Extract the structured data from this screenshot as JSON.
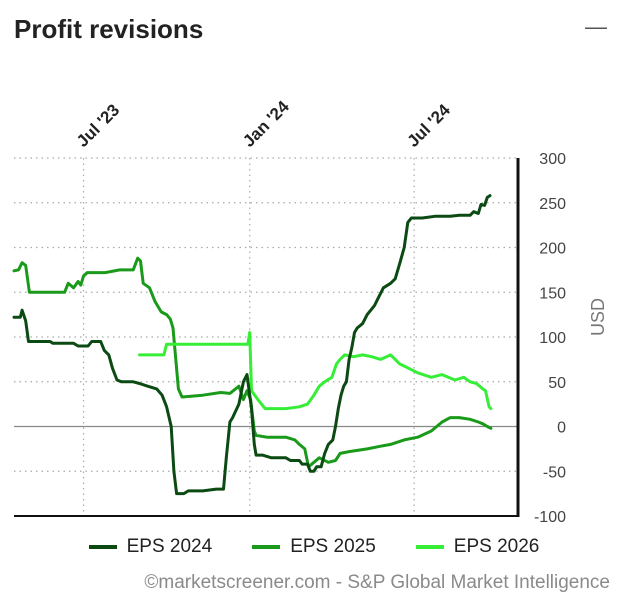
{
  "header": {
    "title": "Profit revisions",
    "collapse_glyph": "—"
  },
  "credit": "©marketscreener.com - S&P Global Market Intelligence",
  "colors": {
    "eps2024": "#0b4a12",
    "eps2025": "#1a9a1a",
    "eps2026": "#37ee37",
    "axis": "#111111",
    "grid": "#aaaaaa",
    "zero": "#888888"
  },
  "chart_data": {
    "type": "line",
    "title": "",
    "xlabel": "",
    "ylabel": "USD",
    "ylim": [
      -100,
      300
    ],
    "y_ticks": [
      300,
      250,
      200,
      150,
      100,
      50,
      0,
      -50,
      -100
    ],
    "xlim": [
      "2023-04-15",
      "2024-10-24"
    ],
    "x_ticks": [
      {
        "date": "2023-07-01",
        "label": "Jul '23"
      },
      {
        "date": "2024-01-01",
        "label": "Jan '24"
      },
      {
        "date": "2024-07-01",
        "label": "Jul '24"
      }
    ],
    "grid": true,
    "legend": "bottom",
    "series": [
      {
        "name": "EPS 2024",
        "color_key": "eps2024",
        "points": [
          [
            "2023-04-15",
            122
          ],
          [
            "2023-04-22",
            122
          ],
          [
            "2023-04-24",
            130
          ],
          [
            "2023-04-28",
            118
          ],
          [
            "2023-05-01",
            95
          ],
          [
            "2023-05-25",
            95
          ],
          [
            "2023-05-28",
            93
          ],
          [
            "2023-06-20",
            93
          ],
          [
            "2023-06-25",
            90
          ],
          [
            "2023-07-06",
            90
          ],
          [
            "2023-07-10",
            95
          ],
          [
            "2023-07-20",
            95
          ],
          [
            "2023-07-24",
            85
          ],
          [
            "2023-07-29",
            80
          ],
          [
            "2023-08-02",
            65
          ],
          [
            "2023-08-07",
            52
          ],
          [
            "2023-08-12",
            50
          ],
          [
            "2023-08-25",
            50
          ],
          [
            "2023-09-01",
            48
          ],
          [
            "2023-09-10",
            45
          ],
          [
            "2023-09-20",
            42
          ],
          [
            "2023-09-26",
            35
          ],
          [
            "2023-10-01",
            22
          ],
          [
            "2023-10-06",
            0
          ],
          [
            "2023-10-09",
            -50
          ],
          [
            "2023-10-12",
            -75
          ],
          [
            "2023-10-20",
            -75
          ],
          [
            "2023-10-25",
            -72
          ],
          [
            "2023-11-10",
            -72
          ],
          [
            "2023-11-25",
            -70
          ],
          [
            "2023-12-03",
            -70
          ],
          [
            "2023-12-06",
            -35
          ],
          [
            "2023-12-10",
            5
          ],
          [
            "2023-12-13",
            10
          ],
          [
            "2023-12-20",
            25
          ],
          [
            "2023-12-25",
            50
          ],
          [
            "2023-12-29",
            58
          ],
          [
            "2024-01-03",
            20
          ],
          [
            "2024-01-06",
            -20
          ],
          [
            "2024-01-08",
            -32
          ],
          [
            "2024-01-15",
            -32
          ],
          [
            "2024-01-25",
            -35
          ],
          [
            "2024-02-10",
            -35
          ],
          [
            "2024-02-15",
            -38
          ],
          [
            "2024-02-25",
            -38
          ],
          [
            "2024-02-28",
            -42
          ],
          [
            "2024-03-05",
            -42
          ],
          [
            "2024-03-08",
            -50
          ],
          [
            "2024-03-12",
            -50
          ],
          [
            "2024-03-15",
            -45
          ],
          [
            "2024-03-20",
            -45
          ],
          [
            "2024-03-24",
            -30
          ],
          [
            "2024-03-28",
            -20
          ],
          [
            "2024-04-02",
            -15
          ],
          [
            "2024-04-05",
            0
          ],
          [
            "2024-04-08",
            20
          ],
          [
            "2024-04-11",
            35
          ],
          [
            "2024-04-14",
            45
          ],
          [
            "2024-04-17",
            50
          ],
          [
            "2024-04-20",
            75
          ],
          [
            "2024-04-23",
            88
          ],
          [
            "2024-04-26",
            105
          ],
          [
            "2024-04-29",
            110
          ],
          [
            "2024-05-05",
            115
          ],
          [
            "2024-05-10",
            125
          ],
          [
            "2024-05-18",
            135
          ],
          [
            "2024-05-23",
            145
          ],
          [
            "2024-05-28",
            155
          ],
          [
            "2024-06-05",
            160
          ],
          [
            "2024-06-10",
            165
          ],
          [
            "2024-06-15",
            182
          ],
          [
            "2024-06-20",
            200
          ],
          [
            "2024-06-24",
            228
          ],
          [
            "2024-06-28",
            233
          ],
          [
            "2024-07-10",
            233
          ],
          [
            "2024-07-25",
            235
          ],
          [
            "2024-08-10",
            235
          ],
          [
            "2024-08-20",
            236
          ],
          [
            "2024-09-01",
            236
          ],
          [
            "2024-09-05",
            240
          ],
          [
            "2024-09-10",
            238
          ],
          [
            "2024-09-13",
            248
          ],
          [
            "2024-09-17",
            247
          ],
          [
            "2024-09-20",
            256
          ],
          [
            "2024-09-23",
            258
          ]
        ]
      },
      {
        "name": "EPS 2025",
        "color_key": "eps2025",
        "points": [
          [
            "2023-04-15",
            174
          ],
          [
            "2023-04-20",
            175
          ],
          [
            "2023-04-24",
            183
          ],
          [
            "2023-04-28",
            180
          ],
          [
            "2023-05-02",
            150
          ],
          [
            "2023-06-10",
            150
          ],
          [
            "2023-06-14",
            160
          ],
          [
            "2023-06-20",
            155
          ],
          [
            "2023-06-25",
            162
          ],
          [
            "2023-06-28",
            158
          ],
          [
            "2023-07-01",
            168
          ],
          [
            "2023-07-05",
            172
          ],
          [
            "2023-07-25",
            172
          ],
          [
            "2023-08-10",
            175
          ],
          [
            "2023-08-25",
            175
          ],
          [
            "2023-08-30",
            188
          ],
          [
            "2023-09-02",
            185
          ],
          [
            "2023-09-05",
            160
          ],
          [
            "2023-09-12",
            155
          ],
          [
            "2023-09-18",
            140
          ],
          [
            "2023-09-25",
            128
          ],
          [
            "2023-10-01",
            125
          ],
          [
            "2023-10-05",
            120
          ],
          [
            "2023-10-08",
            110
          ],
          [
            "2023-10-14",
            42
          ],
          [
            "2023-10-18",
            33
          ],
          [
            "2023-11-10",
            35
          ],
          [
            "2023-11-30",
            38
          ],
          [
            "2023-12-10",
            37
          ],
          [
            "2023-12-20",
            45
          ],
          [
            "2023-12-25",
            30
          ],
          [
            "2023-12-29",
            40
          ],
          [
            "2024-01-02",
            30
          ],
          [
            "2024-01-06",
            -5
          ],
          [
            "2024-01-08",
            -10
          ],
          [
            "2024-01-20",
            -12
          ],
          [
            "2024-02-10",
            -12
          ],
          [
            "2024-02-20",
            -15
          ],
          [
            "2024-02-25",
            -20
          ],
          [
            "2024-03-02",
            -25
          ],
          [
            "2024-03-06",
            -45
          ],
          [
            "2024-03-12",
            -40
          ],
          [
            "2024-03-18",
            -35
          ],
          [
            "2024-03-28",
            -40
          ],
          [
            "2024-04-05",
            -38
          ],
          [
            "2024-04-10",
            -30
          ],
          [
            "2024-04-20",
            -28
          ],
          [
            "2024-05-10",
            -25
          ],
          [
            "2024-05-25",
            -22
          ],
          [
            "2024-06-05",
            -20
          ],
          [
            "2024-06-20",
            -15
          ],
          [
            "2024-07-05",
            -12
          ],
          [
            "2024-07-20",
            -5
          ],
          [
            "2024-08-01",
            5
          ],
          [
            "2024-08-10",
            10
          ],
          [
            "2024-08-20",
            10
          ],
          [
            "2024-09-01",
            8
          ],
          [
            "2024-09-10",
            5
          ],
          [
            "2024-09-15",
            3
          ],
          [
            "2024-09-20",
            0
          ],
          [
            "2024-09-24",
            -2
          ]
        ]
      },
      {
        "name": "EPS 2026",
        "color_key": "eps2026",
        "points": [
          [
            "2023-09-01",
            80
          ],
          [
            "2023-09-28",
            80
          ],
          [
            "2023-10-01",
            92
          ],
          [
            "2023-12-30",
            92
          ],
          [
            "2024-01-01",
            105
          ],
          [
            "2024-01-03",
            40
          ],
          [
            "2024-01-10",
            30
          ],
          [
            "2024-01-18",
            20
          ],
          [
            "2024-02-10",
            20
          ],
          [
            "2024-02-25",
            22
          ],
          [
            "2024-03-05",
            25
          ],
          [
            "2024-03-12",
            35
          ],
          [
            "2024-03-18",
            45
          ],
          [
            "2024-03-24",
            50
          ],
          [
            "2024-04-01",
            55
          ],
          [
            "2024-04-06",
            70
          ],
          [
            "2024-04-10",
            75
          ],
          [
            "2024-04-15",
            80
          ],
          [
            "2024-04-25",
            78
          ],
          [
            "2024-05-05",
            80
          ],
          [
            "2024-05-15",
            78
          ],
          [
            "2024-05-25",
            75
          ],
          [
            "2024-06-05",
            80
          ],
          [
            "2024-06-15",
            70
          ],
          [
            "2024-06-25",
            65
          ],
          [
            "2024-07-05",
            60
          ],
          [
            "2024-07-20",
            55
          ],
          [
            "2024-08-01",
            58
          ],
          [
            "2024-08-15",
            52
          ],
          [
            "2024-08-25",
            55
          ],
          [
            "2024-09-01",
            50
          ],
          [
            "2024-09-08",
            48
          ],
          [
            "2024-09-15",
            42
          ],
          [
            "2024-09-18",
            40
          ],
          [
            "2024-09-22",
            22
          ],
          [
            "2024-09-24",
            20
          ]
        ]
      }
    ]
  }
}
